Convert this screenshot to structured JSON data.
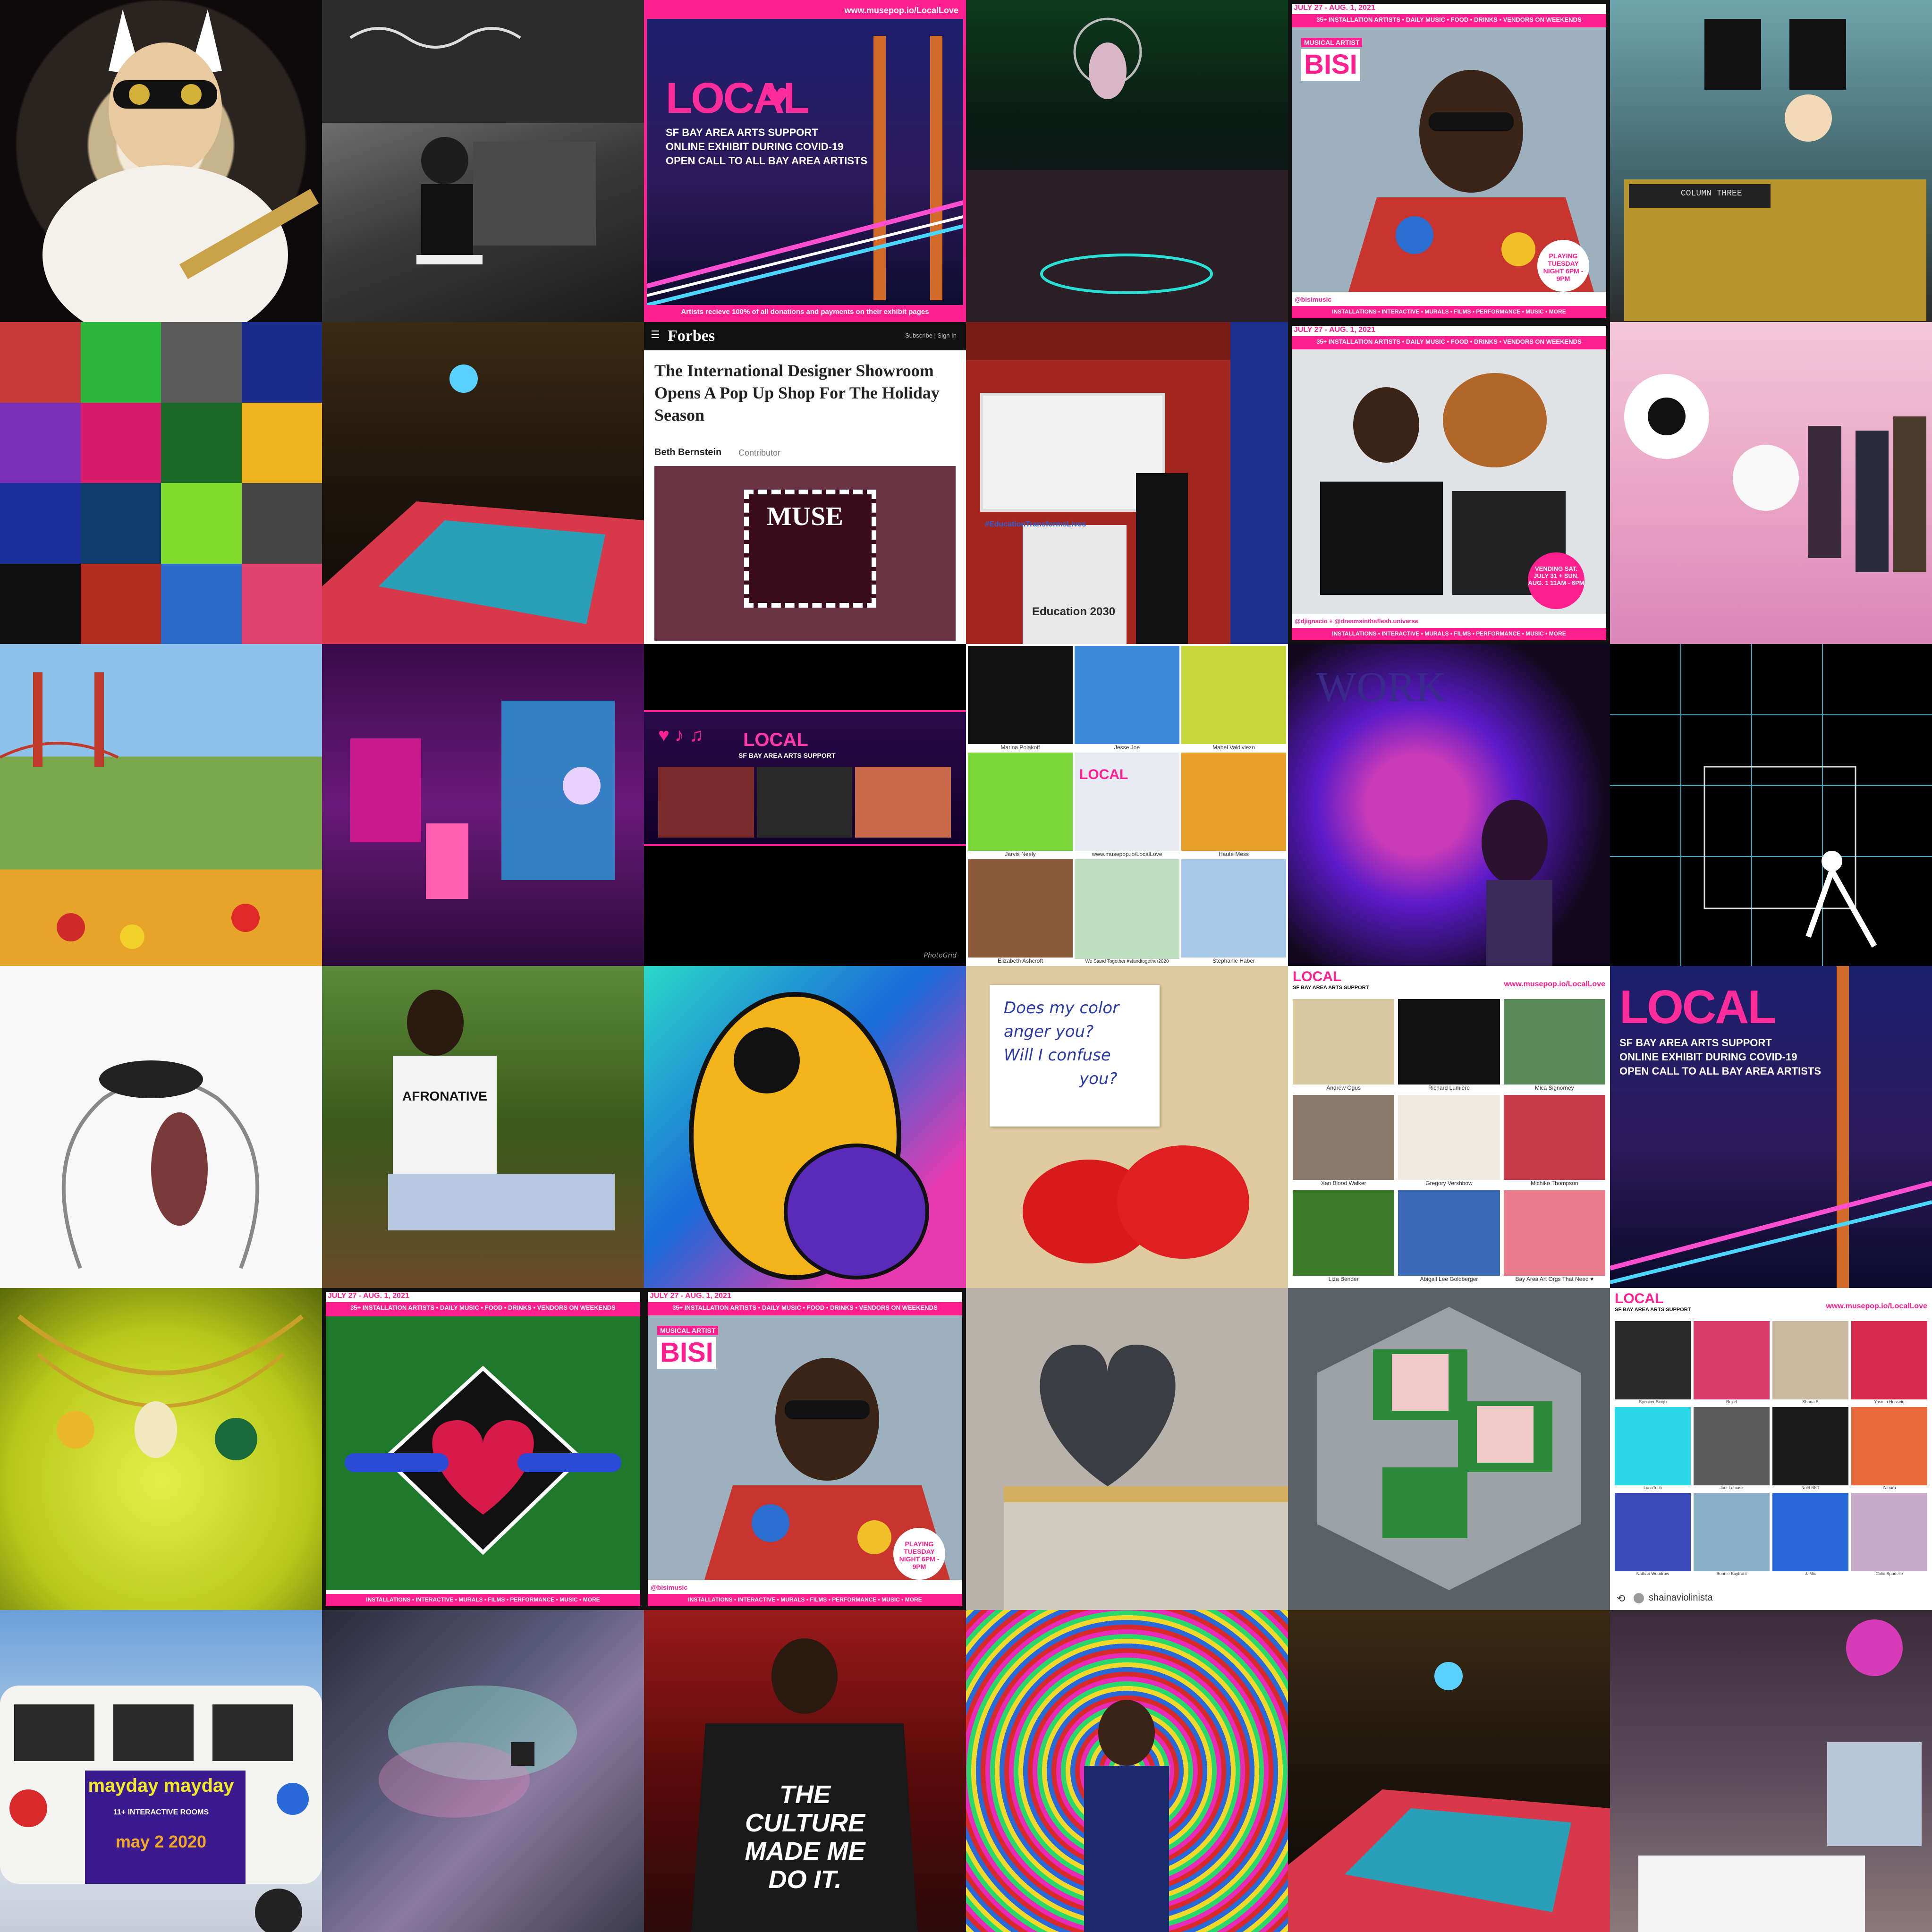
{
  "tiles": {
    "r1c3": {
      "url": "www.musepop.io/LocalLove",
      "logo": "LOCAL",
      "line1": "SF BAY AREA ARTS SUPPORT",
      "line2": "ONLINE EXHIBIT DURING COVID-19",
      "line3": "OPEN CALL TO ALL BAY AREA ARTISTS",
      "footer": "Artists recieve 100% of all donations and payments on their exhibit pages"
    },
    "r1c5": {
      "dates": "JULY 27 - AUG. 1, 2021",
      "header": "35+ INSTALLATION ARTISTS • DAILY MUSIC • FOOD • DRINKS • VENDORS ON WEEKENDS",
      "tag": "MUSICAL ARTIST",
      "name": "BISI",
      "badge": "PLAYING TUESDAY NIGHT 6PM - 9PM",
      "handle": "@bisimusic",
      "footer": "INSTALLATIONS • INTERACTIVE • MURALS • FILMS • PERFORMANCE • MUSIC • MORE"
    },
    "r1c6": {
      "console_text": "COLUMN THREE"
    },
    "r2c3": {
      "brand": "Forbes",
      "nav": "Subscribe | Sign In",
      "headline": "The International Designer Showroom Opens A Pop Up Shop For The Holiday Season",
      "author": "Beth Bernstein",
      "role": "Contributor",
      "sign": "MUSE"
    },
    "r2c4": {
      "wall_text": "#EducationTransformsLives",
      "kiosk": "Education 2030"
    },
    "r2c5": {
      "dates": "JULY 27 - AUG. 1, 2021",
      "header": "35+ INSTALLATION ARTISTS • DAILY MUSIC • FOOD • DRINKS • VENDORS ON WEEKENDS",
      "badge": "VENDING SAT. JULY 31 + SUN. AUG. 1 11AM - 6PM",
      "handle": "@djignacio + @dreamsintheflesh.universe",
      "footer": "INSTALLATIONS • INTERACTIVE • MURALS • FILMS • PERFORMANCE • MUSIC • MORE"
    },
    "r3c3": {
      "logo": "LOCAL",
      "sub": "SF BAY AREA ARTS SUPPORT",
      "credit": "PhotoGrid"
    },
    "r3c4": {
      "names": [
        "Marina Polakoff",
        "Jesse Joe",
        "Mabel Valdiviezo",
        "Jarvis Neely",
        "www.musepop.io/LocalLove",
        "Haute Mess",
        "Elizabeth Ashcroft",
        "We Stand Together #standtogether2020",
        "Stephanie Haber"
      ],
      "logo": "LOCAL"
    },
    "r3c5": {
      "wall_text": "WORK"
    },
    "r4c2": {
      "shirt": "AFRONATIVE"
    },
    "r4c4": {
      "note": [
        "Does my color",
        "anger you?",
        "Will I confuse",
        "you?"
      ]
    },
    "r4c5": {
      "logo": "LOCAL",
      "sub": "SF BAY AREA ARTS SUPPORT",
      "url": "www.musepop.io/LocalLove",
      "names": [
        "Andrew Ogus",
        "Richard Lumière",
        "Mica Signorney",
        "Xan Blood Walker",
        "Gregory Vershbow",
        "Michiko Thompson",
        "Liza Bender",
        "Abigail Lee Goldberger",
        "Bay Area Art Orgs That Need ♥"
      ]
    },
    "r4c6": {
      "logo": "LOCAL",
      "line1": "SF BAY AREA ARTS SUPPORT",
      "line2": "ONLINE EXHIBIT DURING COVID-19",
      "line3": "OPEN CALL TO ALL BAY AREA ARTISTS"
    },
    "r5c2": {
      "dates": "JULY 27 - AUG. 1, 2021",
      "header": "35+ INSTALLATION ARTISTS • DAILY MUSIC • FOOD • DRINKS • VENDORS ON WEEKENDS",
      "footer": "INSTALLATIONS • INTERACTIVE • MURALS • FILMS • PERFORMANCE • MUSIC • MORE"
    },
    "r5c3": {
      "dates": "JULY 27 - AUG. 1, 2021",
      "header": "35+ INSTALLATION ARTISTS • DAILY MUSIC • FOOD • DRINKS • VENDORS ON WEEKENDS",
      "tag": "MUSICAL ARTIST",
      "name": "BISI",
      "badge": "PLAYING TUESDAY NIGHT 6PM - 9PM",
      "handle": "@bisimusic",
      "footer": "INSTALLATIONS • INTERACTIVE • MURALS • FILMS • PERFORMANCE • MUSIC • MORE"
    },
    "r5c6": {
      "logo": "LOCAL",
      "sub": "SF BAY AREA ARTS SUPPORT",
      "url": "www.musepop.io/LocalLove",
      "names": [
        "Spencer Singh",
        "Roxel",
        "Sharia B",
        "Yasmin Hossein",
        "LunaTech",
        "Jodi Lomask",
        "Noël BKT",
        "Zahara",
        "Nathan Woodrow",
        "Bonnie Bayfront",
        "J. Mix",
        "Colin Spadelle"
      ],
      "repost": "shainaviolinista"
    },
    "r6c1": {
      "van_title": "mayday mayday",
      "van_sub": "11+ INTERACTIVE ROOMS",
      "van_date": "may 2 2020"
    },
    "r6c3": {
      "shirt": [
        "THE",
        "CULTURE",
        "MADE ME",
        "DO IT."
      ]
    }
  }
}
